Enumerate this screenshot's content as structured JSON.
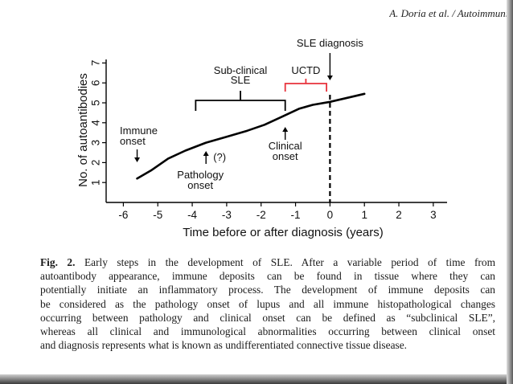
{
  "header": {
    "running_head": "A. Doria et al. / Autoimmunit"
  },
  "chart_data": {
    "type": "line",
    "xlabel": "Time before or after diagnosis (years)",
    "ylabel": "No. of autoantibodies",
    "xlim": [
      -6.5,
      3.4
    ],
    "ylim": [
      0,
      7.5
    ],
    "x_ticks": [
      -6,
      -5,
      -4,
      -3,
      -2,
      -1,
      0,
      1,
      2,
      3
    ],
    "x_tick_labels": [
      "-6",
      "-5",
      "-4",
      "-3",
      "-2",
      "-1",
      "0",
      "1",
      "2",
      "3"
    ],
    "y_ticks": [
      1,
      2,
      3,
      4,
      5,
      6,
      7
    ],
    "y_tick_labels": [
      "1",
      "2",
      "3",
      "4",
      "5",
      "6",
      "7"
    ],
    "grid": false,
    "series": [
      {
        "x": [
          -5.6,
          -5.2,
          -4.7,
          -4.2,
          -3.6,
          -3.0,
          -2.4,
          -1.9,
          -1.4,
          -0.9,
          -0.5,
          0.0,
          0.5,
          1.0
        ],
        "y": [
          1.2,
          1.6,
          2.2,
          2.6,
          3.0,
          3.3,
          3.6,
          3.9,
          4.3,
          4.7,
          4.9,
          5.05,
          5.25,
          5.45
        ]
      }
    ],
    "annotations": {
      "sle_diagnosis": {
        "label": "SLE diagnosis",
        "x": 0
      },
      "uctd": {
        "label": "UCTD",
        "x_from": -1.3,
        "x_to": -0.1
      },
      "subclinical": {
        "label_line1": "Sub-clinical",
        "label_line2": "SLE",
        "x_from": -3.9,
        "x_to": -1.3
      },
      "immune_onset": {
        "label_line1": "Immune",
        "label_line2": "onset",
        "x": -5.6
      },
      "clinical_onset": {
        "label_line1": "Clinical",
        "label_line2": "onset",
        "x": -1.3
      },
      "pathology_onset": {
        "label_line1": "Pathology",
        "label_line2": "onset",
        "question": "(?)",
        "x": -3.6
      }
    },
    "colors": {
      "line": "#000000",
      "uctd_bracket": "#e8323b"
    }
  },
  "caption": {
    "label": "Fig. 2.",
    "line1": " Early steps in the development of SLE. After a variable period of time from",
    "line2": "autoantibody appearance, immune deposits can be found in tissue where they can",
    "line3": "potentially initiate an inflammatory process. The development of immune deposits can",
    "line4": "be considered as the pathology onset of lupus and all immune histopathological changes",
    "line5": "occurring between pathology and clinical onset can be defined as “subclinical SLE”,",
    "line6": "whereas all clinical and immunological abnormalities occurring between clinical onset",
    "line7": "and diagnosis represents what is known as undifferentiated connective tissue disease."
  }
}
